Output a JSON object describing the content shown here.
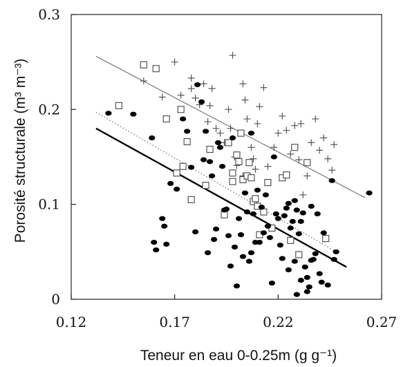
{
  "chart_data": {
    "type": "scatter",
    "title": "",
    "xlabel": "Teneur en eau 0-0.25m (g g⁻¹)",
    "ylabel": "Porosité structurale (m³ m⁻³)",
    "xlim": [
      0.12,
      0.27
    ],
    "ylim": [
      0,
      0.3
    ],
    "xticks": [
      "0.12",
      "0.17",
      "0.22",
      "0.27"
    ],
    "yticks": [
      "0",
      "0.1",
      "0.2",
      "0.3"
    ],
    "grid": false,
    "legend": "none",
    "series": [
      {
        "marker": "plus",
        "color": "#555555",
        "points": [
          [
            0.155,
            0.23
          ],
          [
            0.164,
            0.213
          ],
          [
            0.17,
            0.25
          ],
          [
            0.173,
            0.215
          ],
          [
            0.178,
            0.233
          ],
          [
            0.178,
            0.222
          ],
          [
            0.18,
            0.212
          ],
          [
            0.182,
            0.205
          ],
          [
            0.184,
            0.227
          ],
          [
            0.186,
            0.187
          ],
          [
            0.187,
            0.204
          ],
          [
            0.188,
            0.222
          ],
          [
            0.19,
            0.18
          ],
          [
            0.192,
            0.175
          ],
          [
            0.196,
            0.2
          ],
          [
            0.197,
            0.18
          ],
          [
            0.198,
            0.257
          ],
          [
            0.199,
            0.15
          ],
          [
            0.2,
            0.141
          ],
          [
            0.203,
            0.227
          ],
          [
            0.204,
            0.21
          ],
          [
            0.205,
            0.19
          ],
          [
            0.207,
            0.16
          ],
          [
            0.208,
            0.148
          ],
          [
            0.209,
            0.137
          ],
          [
            0.21,
            0.185
          ],
          [
            0.211,
            0.203
          ],
          [
            0.213,
            0.223
          ],
          [
            0.215,
            0.14
          ],
          [
            0.218,
            0.16
          ],
          [
            0.22,
            0.175
          ],
          [
            0.222,
            0.193
          ],
          [
            0.224,
            0.178
          ],
          [
            0.226,
            0.153
          ],
          [
            0.228,
            0.183
          ],
          [
            0.23,
            0.147
          ],
          [
            0.231,
            0.185
          ],
          [
            0.232,
            0.11
          ],
          [
            0.234,
            0.13
          ],
          [
            0.236,
            0.165
          ],
          [
            0.238,
            0.19
          ],
          [
            0.24,
            0.157
          ],
          [
            0.242,
            0.17
          ],
          [
            0.244,
            0.148
          ],
          [
            0.246,
            0.136
          ],
          [
            0.247,
            0.163
          ],
          [
            0.203,
            0.13
          ],
          [
            0.194,
            0.165
          ]
        ]
      },
      {
        "marker": "open-square",
        "color": "#444444",
        "points": [
          [
            0.143,
            0.204
          ],
          [
            0.155,
            0.247
          ],
          [
            0.161,
            0.243
          ],
          [
            0.166,
            0.19
          ],
          [
            0.171,
            0.133
          ],
          [
            0.173,
            0.2
          ],
          [
            0.174,
            0.14
          ],
          [
            0.176,
            0.166
          ],
          [
            0.178,
            0.105
          ],
          [
            0.185,
            0.12
          ],
          [
            0.187,
            0.158
          ],
          [
            0.194,
            0.089
          ],
          [
            0.196,
            0.165
          ],
          [
            0.198,
            0.124
          ],
          [
            0.198,
            0.133
          ],
          [
            0.201,
            0.145
          ],
          [
            0.202,
            0.175
          ],
          [
            0.203,
            0.126
          ],
          [
            0.205,
            0.13
          ],
          [
            0.206,
            0.144
          ],
          [
            0.207,
            0.128
          ],
          [
            0.208,
            0.103
          ],
          [
            0.21,
            0.098
          ],
          [
            0.211,
            0.068
          ],
          [
            0.213,
            0.092
          ],
          [
            0.215,
            0.123
          ],
          [
            0.217,
            0.075
          ],
          [
            0.222,
            0.128
          ],
          [
            0.224,
            0.131
          ],
          [
            0.226,
            0.062
          ],
          [
            0.228,
            0.16
          ],
          [
            0.23,
            0.047
          ],
          [
            0.234,
            0.144
          ],
          [
            0.243,
            0.064
          ],
          [
            0.2,
            0.152
          ],
          [
            0.209,
            0.106
          ]
        ]
      },
      {
        "marker": "filled-circle",
        "color": "#000000",
        "points": [
          [
            0.138,
            0.196
          ],
          [
            0.15,
            0.195
          ],
          [
            0.159,
            0.17
          ],
          [
            0.16,
            0.06
          ],
          [
            0.161,
            0.052
          ],
          [
            0.164,
            0.085
          ],
          [
            0.165,
            0.077
          ],
          [
            0.166,
            0.058
          ],
          [
            0.168,
            0.122
          ],
          [
            0.171,
            0.116
          ],
          [
            0.174,
            0.19
          ],
          [
            0.176,
            0.177
          ],
          [
            0.178,
            0.139
          ],
          [
            0.18,
            0.071
          ],
          [
            0.181,
            0.226
          ],
          [
            0.183,
            0.208
          ],
          [
            0.184,
            0.147
          ],
          [
            0.185,
            0.177
          ],
          [
            0.186,
            0.049
          ],
          [
            0.187,
            0.145
          ],
          [
            0.188,
            0.13
          ],
          [
            0.189,
            0.063
          ],
          [
            0.19,
            0.074
          ],
          [
            0.191,
            0.165
          ],
          [
            0.192,
            0.16
          ],
          [
            0.193,
            0.14
          ],
          [
            0.194,
            0.094
          ],
          [
            0.195,
            0.095
          ],
          [
            0.196,
            0.067
          ],
          [
            0.197,
            0.035
          ],
          [
            0.198,
            0.17
          ],
          [
            0.199,
            0.055
          ],
          [
            0.2,
            0.014
          ],
          [
            0.201,
            0.085
          ],
          [
            0.202,
            0.068
          ],
          [
            0.203,
            0.045
          ],
          [
            0.204,
            0.112
          ],
          [
            0.205,
            0.092
          ],
          [
            0.206,
            0.04
          ],
          [
            0.207,
            0.175
          ],
          [
            0.207,
            0.049
          ],
          [
            0.208,
            0.09
          ],
          [
            0.209,
            0.06
          ],
          [
            0.21,
            0.115
          ],
          [
            0.211,
            0.06
          ],
          [
            0.212,
            0.097
          ],
          [
            0.213,
            0.07
          ],
          [
            0.214,
            0.11
          ],
          [
            0.215,
            0.077
          ],
          [
            0.216,
            0.065
          ],
          [
            0.217,
            0.017
          ],
          [
            0.218,
            0.15
          ],
          [
            0.219,
            0.09
          ],
          [
            0.22,
            0.085
          ],
          [
            0.221,
            0.057
          ],
          [
            0.222,
            0.043
          ],
          [
            0.223,
            0.088
          ],
          [
            0.224,
            0.096
          ],
          [
            0.225,
            0.101
          ],
          [
            0.226,
            0.075
          ],
          [
            0.227,
            0.082
          ],
          [
            0.228,
            0.104
          ],
          [
            0.229,
            0.094
          ],
          [
            0.23,
            0.069
          ],
          [
            0.231,
            0.082
          ],
          [
            0.232,
            0.091
          ],
          [
            0.233,
            0.034
          ],
          [
            0.234,
            0.023
          ],
          [
            0.234,
            0.008
          ],
          [
            0.235,
            0.013
          ],
          [
            0.236,
            0.041
          ],
          [
            0.237,
            0.042
          ],
          [
            0.238,
            0.048
          ],
          [
            0.239,
            0.09
          ],
          [
            0.24,
            0.027
          ],
          [
            0.241,
            0.018
          ],
          [
            0.242,
            0.07
          ],
          [
            0.244,
            0.015
          ],
          [
            0.246,
            0.125
          ],
          [
            0.247,
            0.042
          ],
          [
            0.248,
            0.05
          ],
          [
            0.264,
            0.112
          ],
          [
            0.228,
            0.04
          ],
          [
            0.231,
            0.02
          ],
          [
            0.236,
            0.098
          ],
          [
            0.225,
            0.031
          ],
          [
            0.229,
            0.005
          ]
        ]
      }
    ],
    "lines": [
      {
        "style": "solid-thin",
        "color": "#777777",
        "x": [
          0.132,
          0.262
        ],
        "y": [
          0.256,
          0.107
        ]
      },
      {
        "style": "dotted",
        "color": "#777777",
        "x": [
          0.132,
          0.248
        ],
        "y": [
          0.197,
          0.05
        ]
      },
      {
        "style": "solid-thick",
        "color": "#000000",
        "x": [
          0.132,
          0.253
        ],
        "y": [
          0.18,
          0.034
        ]
      }
    ]
  }
}
